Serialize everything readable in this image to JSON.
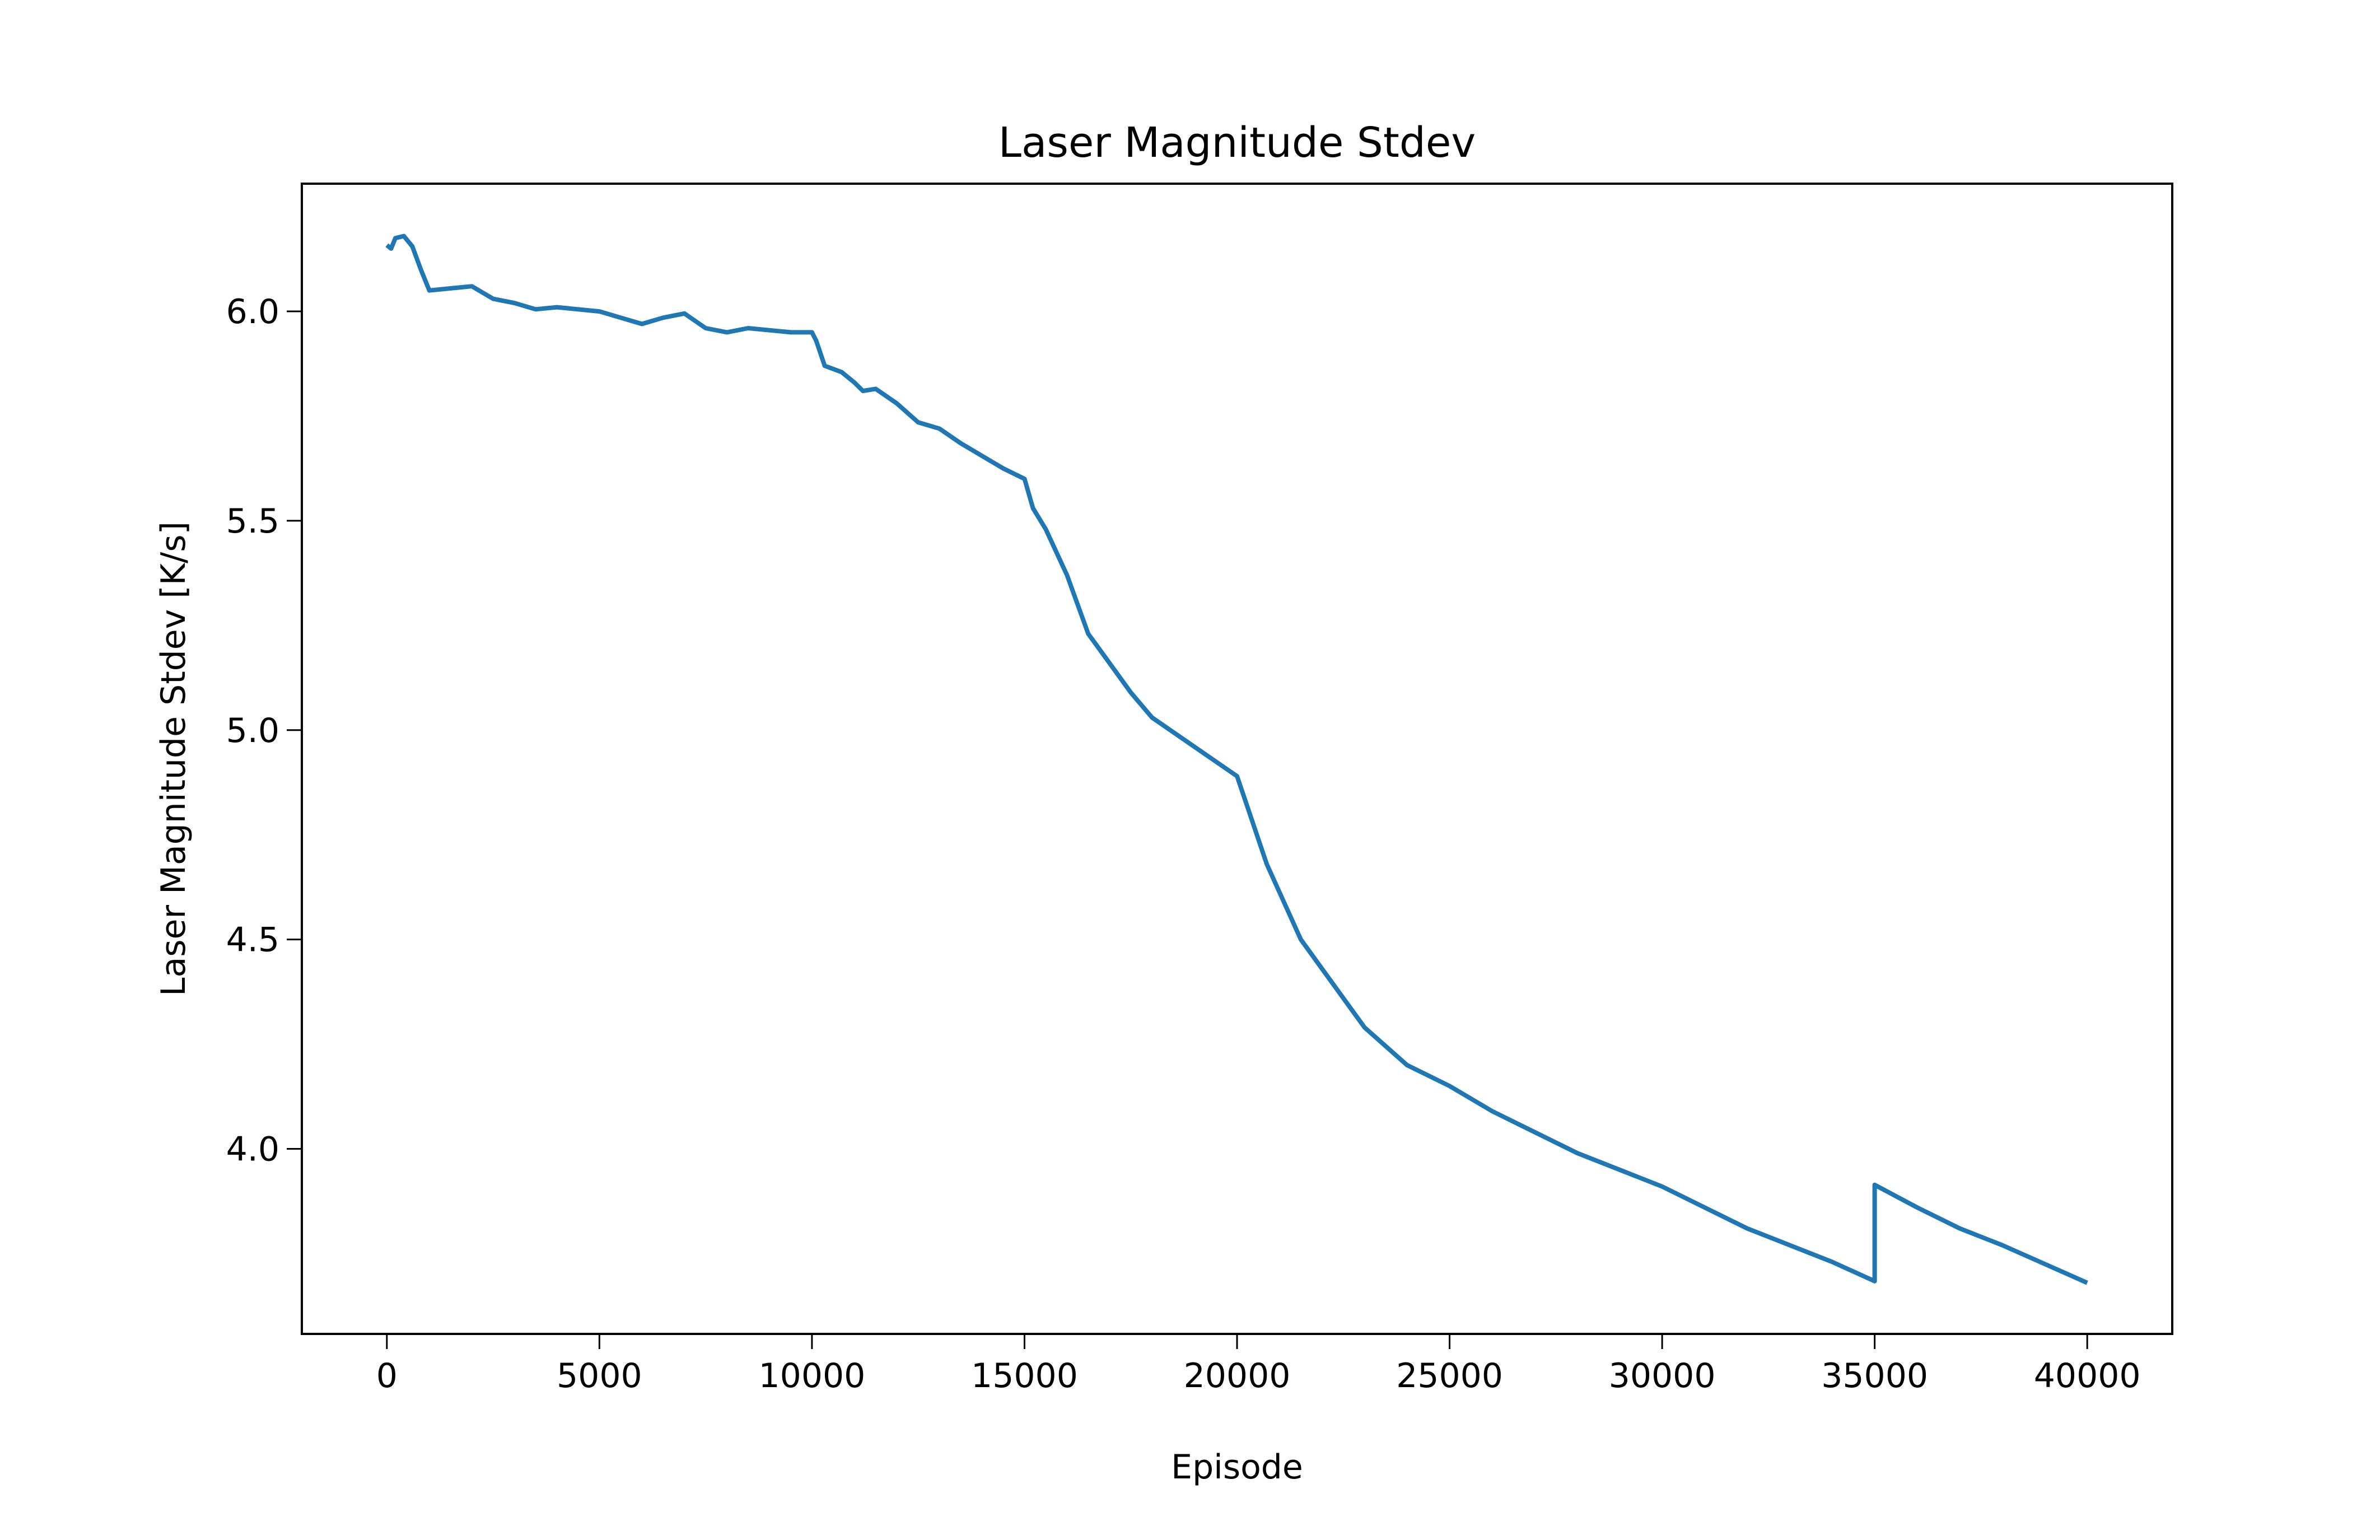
{
  "chart_data": {
    "type": "line",
    "title": "Laser Magnitude Stdev",
    "x_label": "Episode",
    "y_label": "Laser Magnitude Stdev [K/s]",
    "x": [
      0,
      100,
      200,
      400,
      600,
      800,
      1000,
      1500,
      2000,
      2500,
      3000,
      3500,
      4000,
      5000,
      5500,
      6000,
      6500,
      7000,
      7500,
      8000,
      8500,
      9000,
      9500,
      10000,
      10100,
      10300,
      10700,
      11000,
      11200,
      11500,
      12000,
      12500,
      13000,
      13500,
      14000,
      14500,
      15000,
      15200,
      15500,
      16000,
      16500,
      17000,
      17500,
      18000,
      19000,
      20000,
      20200,
      20700,
      21500,
      22000,
      23000,
      24000,
      25000,
      26000,
      27000,
      28000,
      29000,
      30000,
      31000,
      32000,
      33000,
      34000,
      35000,
      35000,
      36000,
      37000,
      38000,
      39000,
      40000
    ],
    "series": [
      {
        "name": "Laser Magnitude Stdev",
        "color": "#1f77b4",
        "values": [
          6.158,
          6.15,
          6.175,
          6.18,
          6.155,
          6.1,
          6.05,
          6.055,
          6.06,
          6.03,
          6.02,
          6.005,
          6.01,
          6.0,
          5.985,
          5.97,
          5.985,
          5.995,
          5.96,
          5.95,
          5.96,
          5.955,
          5.95,
          5.95,
          5.93,
          5.87,
          5.855,
          5.83,
          5.81,
          5.815,
          5.78,
          5.735,
          5.72,
          5.685,
          5.655,
          5.625,
          5.6,
          5.53,
          5.48,
          5.37,
          5.23,
          5.16,
          5.09,
          5.03,
          4.96,
          4.89,
          4.83,
          4.68,
          4.5,
          4.43,
          4.29,
          4.2,
          4.15,
          4.09,
          4.04,
          3.99,
          3.95,
          3.91,
          3.86,
          3.81,
          3.77,
          3.73,
          3.684,
          3.914,
          3.86,
          3.81,
          3.77,
          3.725,
          3.68
        ]
      }
    ],
    "xlim": [
      -2000,
      42000
    ],
    "xticks": [
      0,
      5000,
      10000,
      15000,
      20000,
      25000,
      30000,
      35000,
      40000
    ],
    "ylim": [
      3.558,
      6.305
    ],
    "yticks": [
      {
        "value": 4,
        "label": "4.0"
      },
      4.5,
      {
        "value": 5,
        "label": "5.0"
      },
      5.5,
      {
        "value": 6,
        "label": "6.0"
      }
    ],
    "grid": false
  }
}
